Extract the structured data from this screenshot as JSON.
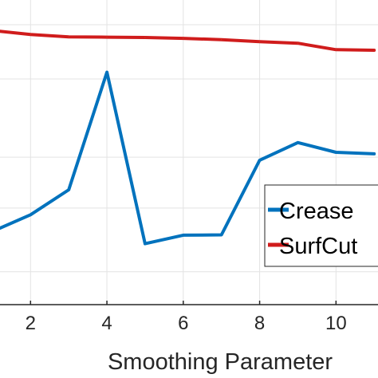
{
  "chart_data": {
    "type": "line",
    "title": "",
    "xlabel": "Smoothing Parameter",
    "ylabel": "",
    "xlim": [
      1.2,
      11.1
    ],
    "ylim": [
      0.0,
      1.0
    ],
    "x_ticks": [
      2,
      4,
      6,
      8,
      10
    ],
    "x_tick_labels": [
      "2",
      "4",
      "6",
      "8",
      "10"
    ],
    "grid": true,
    "legend": {
      "location": "right",
      "entries": [
        "Crease",
        "SurfCut"
      ]
    },
    "series": [
      {
        "name": "Crease",
        "color": "#0072BD",
        "x": [
          1,
          2,
          3,
          4,
          5,
          6,
          7,
          8,
          9,
          10,
          11
        ],
        "y": [
          0.24,
          0.295,
          0.377,
          0.763,
          0.2,
          0.228,
          0.229,
          0.474,
          0.532,
          0.5,
          0.495
        ]
      },
      {
        "name": "SurfCut",
        "color": "#D95319",
        "x": [
          1,
          2,
          3,
          4,
          5,
          6,
          7,
          8,
          9,
          10,
          11
        ],
        "y": [
          0.9,
          0.887,
          0.879,
          0.878,
          0.877,
          0.874,
          0.87,
          0.863,
          0.858,
          0.837,
          0.835
        ]
      }
    ]
  }
}
